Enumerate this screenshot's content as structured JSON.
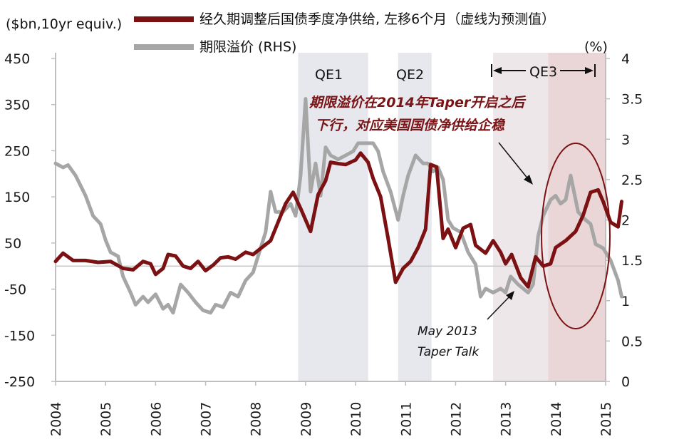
{
  "chart_data": {
    "type": "line",
    "left_axis_label": "($bn,10yr equiv.)",
    "right_axis_label": "(%)",
    "left_axis": {
      "range": [
        -250,
        450
      ],
      "ticks": [
        "450",
        "350",
        "250",
        "150",
        "50",
        "-50",
        "-150",
        "-250"
      ]
    },
    "right_axis": {
      "range": [
        0,
        4
      ],
      "ticks": [
        "4",
        "3.5",
        "3",
        "2.5",
        "2",
        "1.5",
        "1",
        "0.5",
        "0"
      ]
    },
    "x_axis": {
      "range": [
        2004,
        2015
      ],
      "ticks": [
        "2004",
        "2005",
        "2006",
        "2007",
        "2008",
        "2009",
        "2010",
        "2011",
        "2012",
        "2013",
        "2014",
        "2015"
      ]
    },
    "zero_line": 0,
    "series": [
      {
        "name": "经久期调整后国债季度净供给, 左移6个月（虚线为预测值）",
        "axis": "left",
        "color": "#7b1113",
        "points": [
          [
            2004.0,
            10
          ],
          [
            2004.15,
            28
          ],
          [
            2004.35,
            12
          ],
          [
            2004.6,
            12
          ],
          [
            2004.85,
            8
          ],
          [
            2005.1,
            10
          ],
          [
            2005.35,
            -5
          ],
          [
            2005.55,
            -8
          ],
          [
            2005.75,
            10
          ],
          [
            2005.9,
            5
          ],
          [
            2006.0,
            -18
          ],
          [
            2006.15,
            -5
          ],
          [
            2006.25,
            25
          ],
          [
            2006.4,
            22
          ],
          [
            2006.55,
            0
          ],
          [
            2006.7,
            -5
          ],
          [
            2006.85,
            10
          ],
          [
            2007.0,
            -10
          ],
          [
            2007.15,
            2
          ],
          [
            2007.3,
            18
          ],
          [
            2007.45,
            20
          ],
          [
            2007.6,
            15
          ],
          [
            2007.8,
            30
          ],
          [
            2007.95,
            25
          ],
          [
            2008.1,
            38
          ],
          [
            2008.3,
            55
          ],
          [
            2008.45,
            95
          ],
          [
            2008.6,
            135
          ],
          [
            2008.75,
            160
          ],
          [
            2008.9,
            125
          ],
          [
            2009.1,
            75
          ],
          [
            2009.25,
            155
          ],
          [
            2009.4,
            185
          ],
          [
            2009.5,
            225
          ],
          [
            2009.65,
            222
          ],
          [
            2009.8,
            220
          ],
          [
            2010.0,
            230
          ],
          [
            2010.1,
            245
          ],
          [
            2010.25,
            225
          ],
          [
            2010.35,
            190
          ],
          [
            2010.5,
            150
          ],
          [
            2010.65,
            60
          ],
          [
            2010.8,
            -35
          ],
          [
            2010.95,
            -5
          ],
          [
            2011.1,
            10
          ],
          [
            2011.25,
            40
          ],
          [
            2011.4,
            80
          ],
          [
            2011.5,
            220
          ],
          [
            2011.62,
            215
          ],
          [
            2011.75,
            60
          ],
          [
            2011.85,
            80
          ],
          [
            2012.0,
            40
          ],
          [
            2012.15,
            82
          ],
          [
            2012.3,
            90
          ],
          [
            2012.4,
            45
          ],
          [
            2012.6,
            28
          ],
          [
            2012.75,
            55
          ],
          [
            2012.9,
            30
          ],
          [
            2013.0,
            5
          ],
          [
            2013.12,
            25
          ],
          [
            2013.3,
            -25
          ],
          [
            2013.45,
            -45
          ],
          [
            2013.6,
            20
          ],
          [
            2013.75,
            0
          ],
          [
            2013.9,
            5
          ],
          [
            2014.0,
            40
          ],
          [
            2014.2,
            55
          ],
          [
            2014.4,
            75
          ],
          [
            2014.55,
            110
          ],
          [
            2014.7,
            160
          ],
          [
            2014.85,
            165
          ],
          [
            2014.95,
            140
          ],
          [
            2015.1,
            95
          ],
          [
            2015.25,
            85
          ],
          [
            2015.32,
            140
          ]
        ]
      },
      {
        "name": "期限溢价 (RHS)",
        "axis": "right",
        "color": "#a6a6a6",
        "points": [
          [
            2004.0,
            2.7
          ],
          [
            2004.15,
            2.65
          ],
          [
            2004.25,
            2.68
          ],
          [
            2004.4,
            2.55
          ],
          [
            2004.6,
            2.3
          ],
          [
            2004.75,
            2.05
          ],
          [
            2004.9,
            1.95
          ],
          [
            2005.0,
            1.75
          ],
          [
            2005.1,
            1.6
          ],
          [
            2005.25,
            1.55
          ],
          [
            2005.35,
            1.3
          ],
          [
            2005.5,
            1.1
          ],
          [
            2005.6,
            0.95
          ],
          [
            2005.75,
            1.05
          ],
          [
            2005.85,
            0.98
          ],
          [
            2006.0,
            1.08
          ],
          [
            2006.15,
            0.9
          ],
          [
            2006.25,
            0.95
          ],
          [
            2006.35,
            0.85
          ],
          [
            2006.5,
            1.2
          ],
          [
            2006.65,
            1.1
          ],
          [
            2006.8,
            0.98
          ],
          [
            2006.95,
            0.88
          ],
          [
            2007.1,
            0.85
          ],
          [
            2007.2,
            0.95
          ],
          [
            2007.35,
            0.92
          ],
          [
            2007.5,
            1.1
          ],
          [
            2007.65,
            1.05
          ],
          [
            2007.8,
            1.25
          ],
          [
            2007.95,
            1.35
          ],
          [
            2008.05,
            1.55
          ],
          [
            2008.2,
            1.85
          ],
          [
            2008.3,
            2.35
          ],
          [
            2008.4,
            2.1
          ],
          [
            2008.55,
            2.1
          ],
          [
            2008.7,
            2.2
          ],
          [
            2008.8,
            2.05
          ],
          [
            2008.9,
            2.55
          ],
          [
            2009.0,
            3.5
          ],
          [
            2009.1,
            2.35
          ],
          [
            2009.2,
            2.7
          ],
          [
            2009.3,
            2.3
          ],
          [
            2009.4,
            2.9
          ],
          [
            2009.5,
            2.8
          ],
          [
            2009.65,
            2.75
          ],
          [
            2009.8,
            2.8
          ],
          [
            2009.95,
            2.85
          ],
          [
            2010.05,
            2.95
          ],
          [
            2010.2,
            2.95
          ],
          [
            2010.35,
            2.95
          ],
          [
            2010.45,
            2.85
          ],
          [
            2010.55,
            2.6
          ],
          [
            2010.7,
            2.35
          ],
          [
            2010.85,
            2.0
          ],
          [
            2010.95,
            2.3
          ],
          [
            2011.05,
            2.55
          ],
          [
            2011.2,
            2.8
          ],
          [
            2011.35,
            2.7
          ],
          [
            2011.45,
            2.7
          ],
          [
            2011.55,
            2.6
          ],
          [
            2011.65,
            2.65
          ],
          [
            2011.75,
            2.5
          ],
          [
            2011.85,
            2.0
          ],
          [
            2011.95,
            1.9
          ],
          [
            2012.1,
            1.85
          ],
          [
            2012.25,
            1.6
          ],
          [
            2012.4,
            1.45
          ],
          [
            2012.5,
            1.05
          ],
          [
            2012.6,
            1.15
          ],
          [
            2012.75,
            1.1
          ],
          [
            2012.9,
            1.15
          ],
          [
            2013.0,
            1.1
          ],
          [
            2013.1,
            1.3
          ],
          [
            2013.25,
            1.2
          ],
          [
            2013.45,
            1.1
          ],
          [
            2013.55,
            1.2
          ],
          [
            2013.65,
            1.8
          ],
          [
            2013.75,
            2.05
          ],
          [
            2013.9,
            2.25
          ],
          [
            2014.0,
            2.3
          ],
          [
            2014.1,
            2.2
          ],
          [
            2014.2,
            2.25
          ],
          [
            2014.3,
            2.55
          ],
          [
            2014.45,
            2.1
          ],
          [
            2014.6,
            2.0
          ],
          [
            2014.7,
            1.95
          ],
          [
            2014.8,
            1.7
          ],
          [
            2014.95,
            1.65
          ],
          [
            2015.1,
            1.5
          ],
          [
            2015.25,
            1.25
          ],
          [
            2015.32,
            1.05
          ]
        ]
      }
    ],
    "shaded_periods": [
      {
        "label": "QE1",
        "from": 2008.85,
        "to": 2010.25,
        "color": "#e7e8ee"
      },
      {
        "label": "QE2",
        "from": 2010.85,
        "to": 2011.52,
        "color": "#e7e8ee"
      },
      {
        "label": "",
        "from": 2012.75,
        "to": 2013.85,
        "color": "#ede7ea"
      },
      {
        "label": "",
        "from": 2013.85,
        "to": 2015.0,
        "color": "#ead6d6"
      }
    ],
    "qe3_label": "QE3",
    "annotations": [
      {
        "line1": "期限溢价在2014年Taper开启之后",
        "line2": "下行，对应美国国债净供给企稳"
      },
      {
        "line1": "May 2013",
        "line2": "Taper Talk"
      }
    ]
  }
}
